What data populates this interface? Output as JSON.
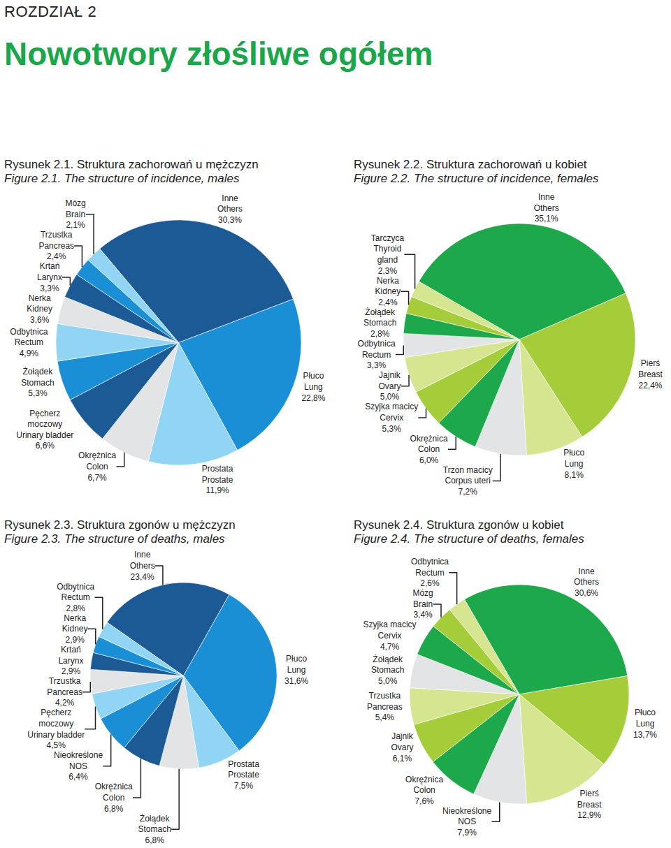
{
  "header": {
    "chapter": "ROZDZIAŁ 2",
    "title": "Nowotwory złośliwe ogółem"
  },
  "chart_data": [
    {
      "type": "pie",
      "title": "Rysunek 2.1. Struktura zachorowań u mężczyzn",
      "subtitle": "Figure 2.1. The structure of incidence, males",
      "categories": [
        "Inne\nOthers",
        "Płuco\nLung",
        "Prostata\nProstate",
        "Okrężnica\nColon",
        "Pęcherz\nmoczowy\nUrinary bladder",
        "Żołądek\nStomach",
        "Odbytnica\nRectum",
        "Nerka\nKidney",
        "Krtań\nLarynx",
        "Trzustka\nPancreas",
        "Mózg\nBrain"
      ],
      "values": [
        30.3,
        22.8,
        11.9,
        6.7,
        6.6,
        5.3,
        4.9,
        3.6,
        3.3,
        2.4,
        2.1
      ],
      "value_labels": [
        "30,3%",
        "22,8%",
        "11,9%",
        "6,7%",
        "6,6%",
        "5,3%",
        "4,9%",
        "3,6%",
        "3,3%",
        "2,4%",
        "2,1%"
      ],
      "colors": [
        "#1b5a94",
        "#1a8fd6",
        "#92d4f4",
        "#e2e4e6",
        "#1b5a94",
        "#1a8fd6",
        "#92d4f4",
        "#e2e4e6",
        "#1b5a94",
        "#1a8fd6",
        "#92d4f4"
      ],
      "data_labels": true
    },
    {
      "type": "pie",
      "title": "Rysunek 2.2. Struktura zachorowań u kobiet",
      "subtitle": "Figure 2.2. The structure of incidence, females",
      "categories": [
        "Inne\nOthers",
        "Pierś\nBreast",
        "Płuco\nLung",
        "Trzon macicy\nCorpus uteri",
        "Okrężnica\nColon",
        "Szyjka macicy\nCervix",
        "Jajnik\nOvary",
        "Odbytnica\nRectum",
        "Żołądek\nStomach",
        "Nerka\nKidney",
        "Tarczyca\nThyroid\ngland"
      ],
      "values": [
        35.1,
        22.4,
        8.1,
        7.2,
        6.0,
        5.3,
        5.0,
        3.3,
        2.8,
        2.4,
        2.3
      ],
      "value_labels": [
        "35,1%",
        "22,4%",
        "8,1%",
        "7,2%",
        "6,0%",
        "5,3%",
        "5,0%",
        "3,3%",
        "2,8%",
        "2,4%",
        "2,3%"
      ],
      "colors": [
        "#1ca84b",
        "#a5cd3a",
        "#d5e590",
        "#e2e4e6",
        "#1ca84b",
        "#a5cd3a",
        "#d5e590",
        "#e2e4e6",
        "#1ca84b",
        "#a5cd3a",
        "#d5e590"
      ],
      "data_labels": true
    },
    {
      "type": "pie",
      "title": "Rysunek 2.3. Struktura zgonów u mężczyzn",
      "subtitle": "Figure 2.3. The structure of deaths, males",
      "categories": [
        "Inne\nOthers",
        "Płuco\nLung",
        "Prostata\nProstate",
        "Żołądek\nStomach",
        "Okrężnica\nColon",
        "Nieokreślone\nNOS",
        "Pęcherz\nmoczowy\nUrinary bladder",
        "Trzustka\nPancreas",
        "Krtań\nLarynx",
        "Nerka\nKidney",
        "Odbytnica\nRectum"
      ],
      "values": [
        23.4,
        31.6,
        7.5,
        6.8,
        6.8,
        6.4,
        4.5,
        4.2,
        2.9,
        2.9,
        2.8
      ],
      "value_labels": [
        "23,4%",
        "31,6%",
        "7,5%",
        "6,8%",
        "6,8%",
        "6,4%",
        "4,5%",
        "4,2%",
        "2,9%",
        "2,9%",
        "2,8%"
      ],
      "colors": [
        "#1b5a94",
        "#1a8fd6",
        "#92d4f4",
        "#e2e4e6",
        "#1b5a94",
        "#1a8fd6",
        "#92d4f4",
        "#e2e4e6",
        "#1b5a94",
        "#1a8fd6",
        "#92d4f4"
      ],
      "data_labels": true
    },
    {
      "type": "pie",
      "title": "Rysunek 2.4. Struktura zgonów u kobiet",
      "subtitle": "Figure 2.4. The structure of deaths, females",
      "categories": [
        "Inne\nOthers",
        "Płuco\nLung",
        "Pierś\nBreast",
        "Nieokreślone\nNOS",
        "Okrężnica\nColon",
        "Jajnik\nOvary",
        "Trzustka\nPancreas",
        "Żołądek\nStomach",
        "Szyjka macicy\nCervix",
        "Mózg\nBrain",
        "Odbytnica\nRectum"
      ],
      "values": [
        30.6,
        13.7,
        12.9,
        7.9,
        7.6,
        6.1,
        5.4,
        5.0,
        4.7,
        3.4,
        2.6
      ],
      "value_labels": [
        "30,6%",
        "13,7%",
        "12,9%",
        "7,9%",
        "7,6%",
        "6,1%",
        "5,4%",
        "5,0%",
        "4,7%",
        "3,4%",
        "2,6%"
      ],
      "colors": [
        "#1ca84b",
        "#a5cd3a",
        "#d5e590",
        "#e2e4e6",
        "#1ca84b",
        "#a5cd3a",
        "#d5e590",
        "#e2e4e6",
        "#1ca84b",
        "#a5cd3a",
        "#d5e590"
      ],
      "data_labels": true
    }
  ]
}
